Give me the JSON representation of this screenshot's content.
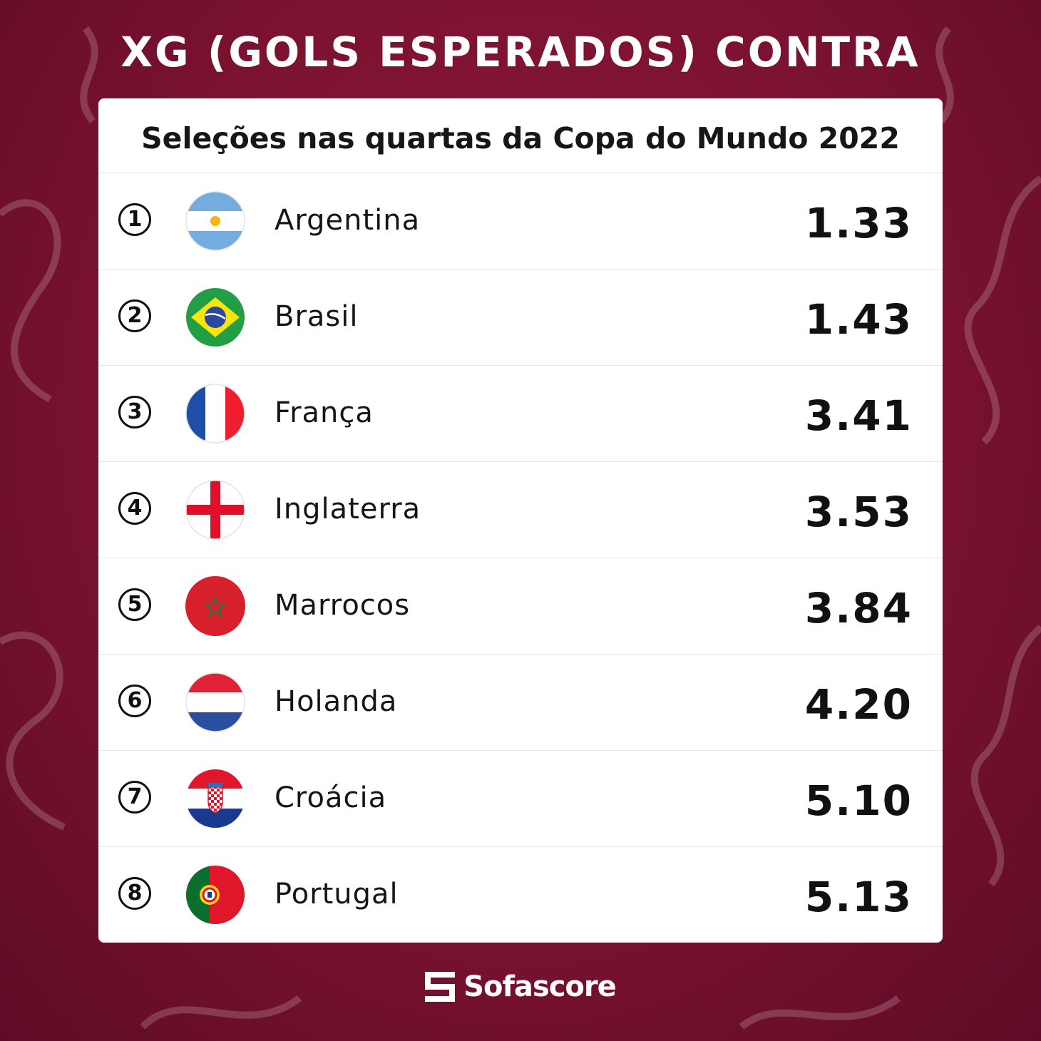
{
  "header": {
    "title": "XG (GOLS ESPERADOS) CONTRA"
  },
  "card": {
    "title": "Seleções nas quartas da Copa do Mundo 2022"
  },
  "rows": [
    {
      "rank": "1",
      "team": "Argentina",
      "value": "1.33",
      "flag": "argentina-flag-icon"
    },
    {
      "rank": "2",
      "team": "Brasil",
      "value": "1.43",
      "flag": "brazil-flag-icon"
    },
    {
      "rank": "3",
      "team": "França",
      "value": "3.41",
      "flag": "france-flag-icon"
    },
    {
      "rank": "4",
      "team": "Inglaterra",
      "value": "3.53",
      "flag": "england-flag-icon"
    },
    {
      "rank": "5",
      "team": "Marrocos",
      "value": "3.84",
      "flag": "morocco-flag-icon"
    },
    {
      "rank": "6",
      "team": "Holanda",
      "value": "4.20",
      "flag": "netherlands-flag-icon"
    },
    {
      "rank": "7",
      "team": "Croácia",
      "value": "5.10",
      "flag": "croatia-flag-icon"
    },
    {
      "rank": "8",
      "team": "Portugal",
      "value": "5.13",
      "flag": "portugal-flag-icon"
    }
  ],
  "brand": {
    "name": "Sofascore",
    "logo": "sofascore-logo-icon"
  },
  "colors": {
    "background": "#7a1230",
    "card": "#ffffff",
    "text": "#111111"
  }
}
